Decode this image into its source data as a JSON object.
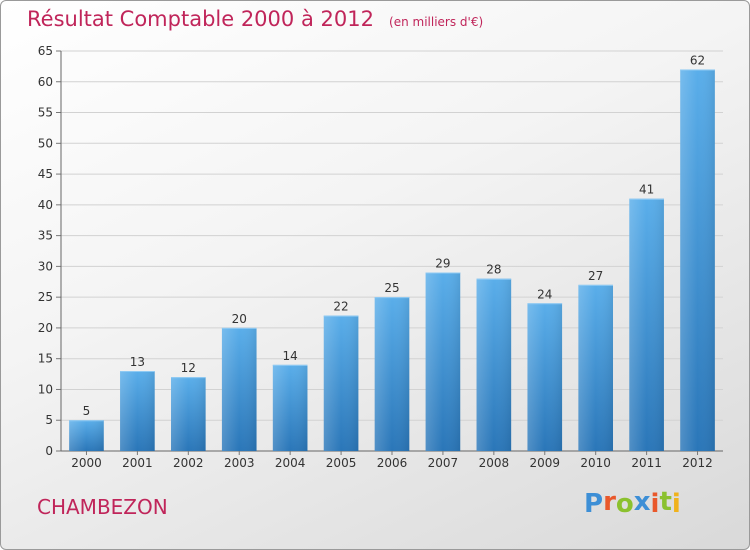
{
  "header": {
    "title": "Résultat Comptable 2000 à 2012",
    "subtitle": "(en milliers d'€)"
  },
  "footer": {
    "town": "CHAMBEZON",
    "logo_text": "Proxiti",
    "logo_colors": [
      "#3d8fd6",
      "#e9582b",
      "#8bc12f",
      "#3d8fd6",
      "#e9582b",
      "#8bc12f",
      "#f0b21c"
    ]
  },
  "colors": {
    "accent": "#c0255a",
    "bar_top": "#5aaeea",
    "bar_bottom": "#2a76b8"
  },
  "chart_data": {
    "type": "bar",
    "categories": [
      "2000",
      "2001",
      "2002",
      "2003",
      "2004",
      "2005",
      "2006",
      "2007",
      "2008",
      "2009",
      "2010",
      "2011",
      "2012"
    ],
    "values": [
      5,
      13,
      12,
      20,
      14,
      22,
      25,
      29,
      28,
      24,
      27,
      41,
      62
    ],
    "ylim": [
      0,
      65
    ],
    "yticks": [
      0,
      5,
      10,
      15,
      20,
      25,
      30,
      35,
      40,
      45,
      50,
      55,
      60,
      65
    ],
    "grid": true,
    "legend": "none"
  }
}
